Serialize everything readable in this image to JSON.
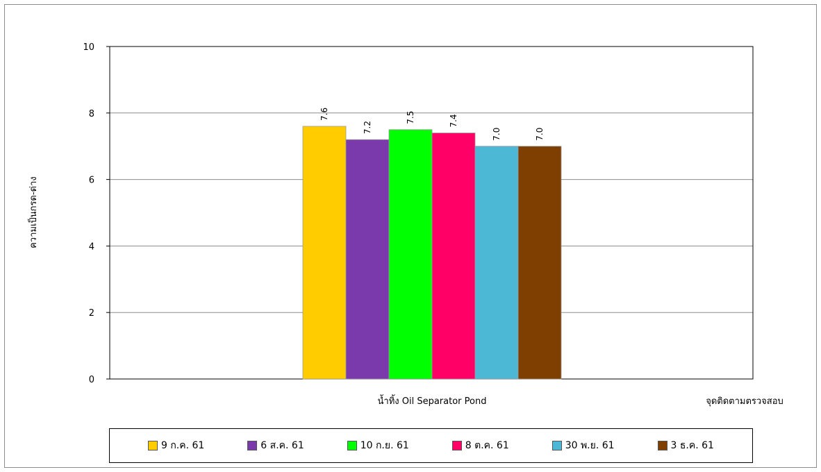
{
  "chart_data": {
    "type": "bar",
    "categories": [
      "น้ำทิ้ง Oil Separator Pond"
    ],
    "series": [
      {
        "name": "9 ก.ค. 61",
        "values": [
          7.6
        ],
        "label": "7.6",
        "color": "#FFCC00"
      },
      {
        "name": "6 ส.ค. 61",
        "values": [
          7.2
        ],
        "label": "7.2",
        "color": "#7B3AAB"
      },
      {
        "name": "10 ก.ย. 61",
        "values": [
          7.5
        ],
        "label": "7.5",
        "color": "#00FF00"
      },
      {
        "name": "8 ต.ค. 61",
        "values": [
          7.4
        ],
        "label": "7.4",
        "color": "#FF0066"
      },
      {
        "name": "30 พ.ย. 61",
        "values": [
          7.0
        ],
        "label": "7.0",
        "color": "#4DB8D6"
      },
      {
        "name": "3 ธ.ค. 61",
        "values": [
          7.0
        ],
        "label": "7.0",
        "color": "#7F3F00"
      }
    ],
    "xlabel": "จุดติดตามตรวจสอบ",
    "ylabel": "ความเป็นกรด-ด่าง",
    "ylim": [
      0,
      10
    ],
    "yticks": [
      "0",
      "2",
      "4",
      "6",
      "8",
      "10"
    ],
    "grid": true,
    "legend_position": "bottom"
  }
}
